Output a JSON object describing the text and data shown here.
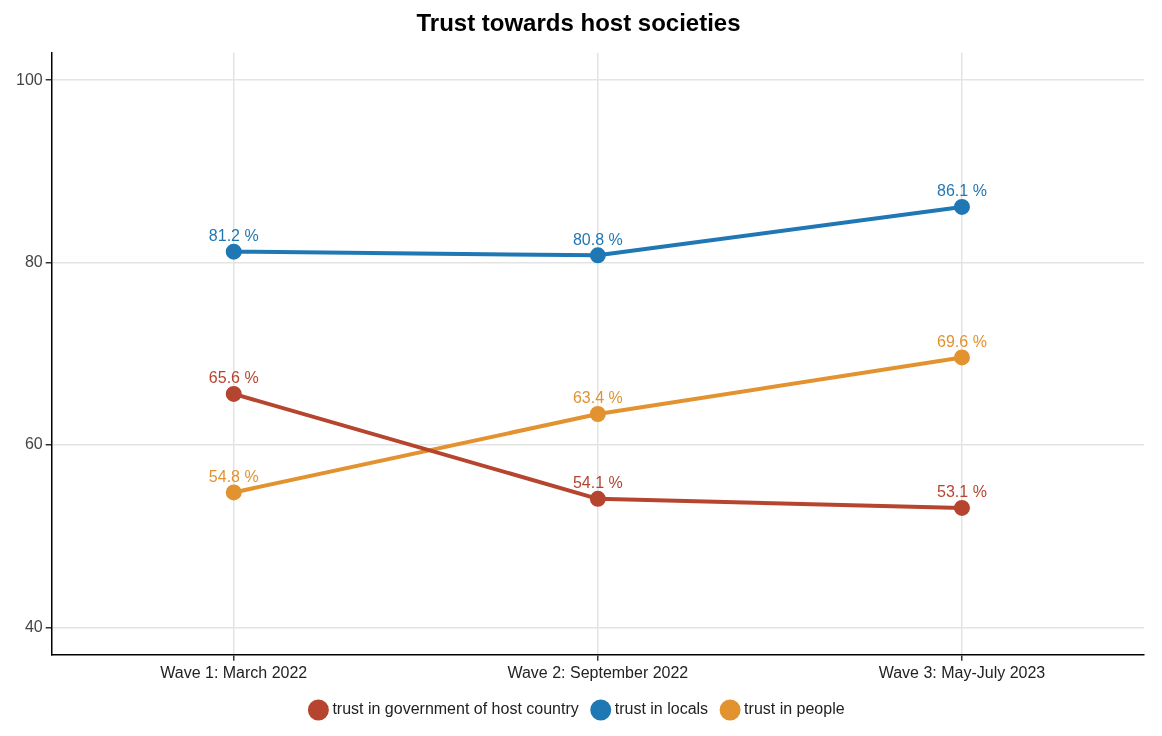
{
  "chart_data": {
    "type": "line",
    "title": "Trust towards host societies",
    "categories": [
      "Wave 1: March 2022",
      "Wave 2: September 2022",
      "Wave 3: May-July 2023"
    ],
    "series": [
      {
        "name": "trust in government of host country",
        "color": "#b5452f",
        "values": [
          65.6,
          54.1,
          53.1
        ],
        "value_labels": [
          "65.6 %",
          "54.1 %",
          "53.1 %"
        ]
      },
      {
        "name": "trust in locals",
        "color": "#1f77b4",
        "values": [
          81.2,
          80.8,
          86.1
        ],
        "value_labels": [
          "81.2 %",
          "80.8 %",
          "86.1 %"
        ]
      },
      {
        "name": "trust in people",
        "color": "#e2922f",
        "values": [
          54.8,
          63.4,
          69.6
        ],
        "value_labels": [
          "54.8 %",
          "63.4 %",
          "69.6 %"
        ]
      }
    ],
    "ylim": [
      37,
      103
    ],
    "yticks": [
      40,
      60,
      80,
      100
    ],
    "grid": true,
    "legend": "bottom",
    "marker": "circle",
    "line_style": "solid"
  }
}
